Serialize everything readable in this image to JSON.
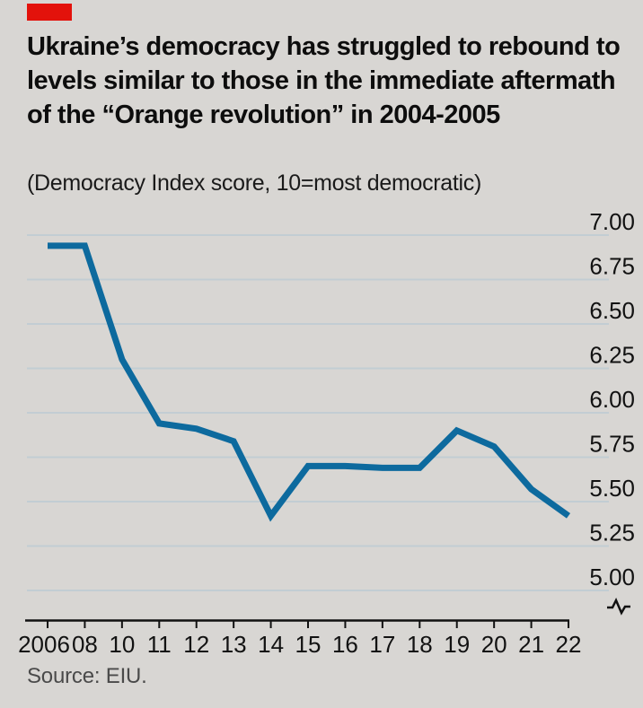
{
  "header": {
    "title": "Ukraine’s democracy has struggled to rebound to levels similar to those in the immediate aftermath of the “Orange revolution” in 2004-2005",
    "subtitle": "(Democracy Index score, 10=most democratic)"
  },
  "footer": {
    "source": "Source: EIU."
  },
  "colors": {
    "accent_red": "#e3120b",
    "line_blue": "#0d6a9e",
    "gridline": "#c2cdd3",
    "axis": "#111111",
    "tick_label": "#121212",
    "background": "#d8d6d3",
    "muted_text": "#4a4a4a"
  },
  "chart_data": {
    "type": "line",
    "title": "Ukraine Democracy Index score",
    "xlabel": "",
    "ylabel": "Democracy Index score, 10=most democratic",
    "x_labels": [
      "2006",
      "08",
      "10",
      "11",
      "12",
      "13",
      "14",
      "15",
      "16",
      "17",
      "18",
      "19",
      "20",
      "21",
      "22"
    ],
    "series": [
      {
        "name": "Ukraine",
        "values": [
          6.94,
          6.94,
          6.3,
          5.94,
          5.91,
          5.84,
          5.42,
          5.7,
          5.7,
          5.69,
          5.69,
          5.9,
          5.81,
          5.57,
          5.42
        ]
      }
    ],
    "y_ticks": [
      7.0,
      6.75,
      6.5,
      6.25,
      6.0,
      5.75,
      5.5,
      5.25,
      5.0
    ],
    "ylim": [
      5.0,
      7.0
    ],
    "axis_break": true,
    "grid": "horizontal",
    "y_axis_side": "right",
    "legend": "none"
  }
}
